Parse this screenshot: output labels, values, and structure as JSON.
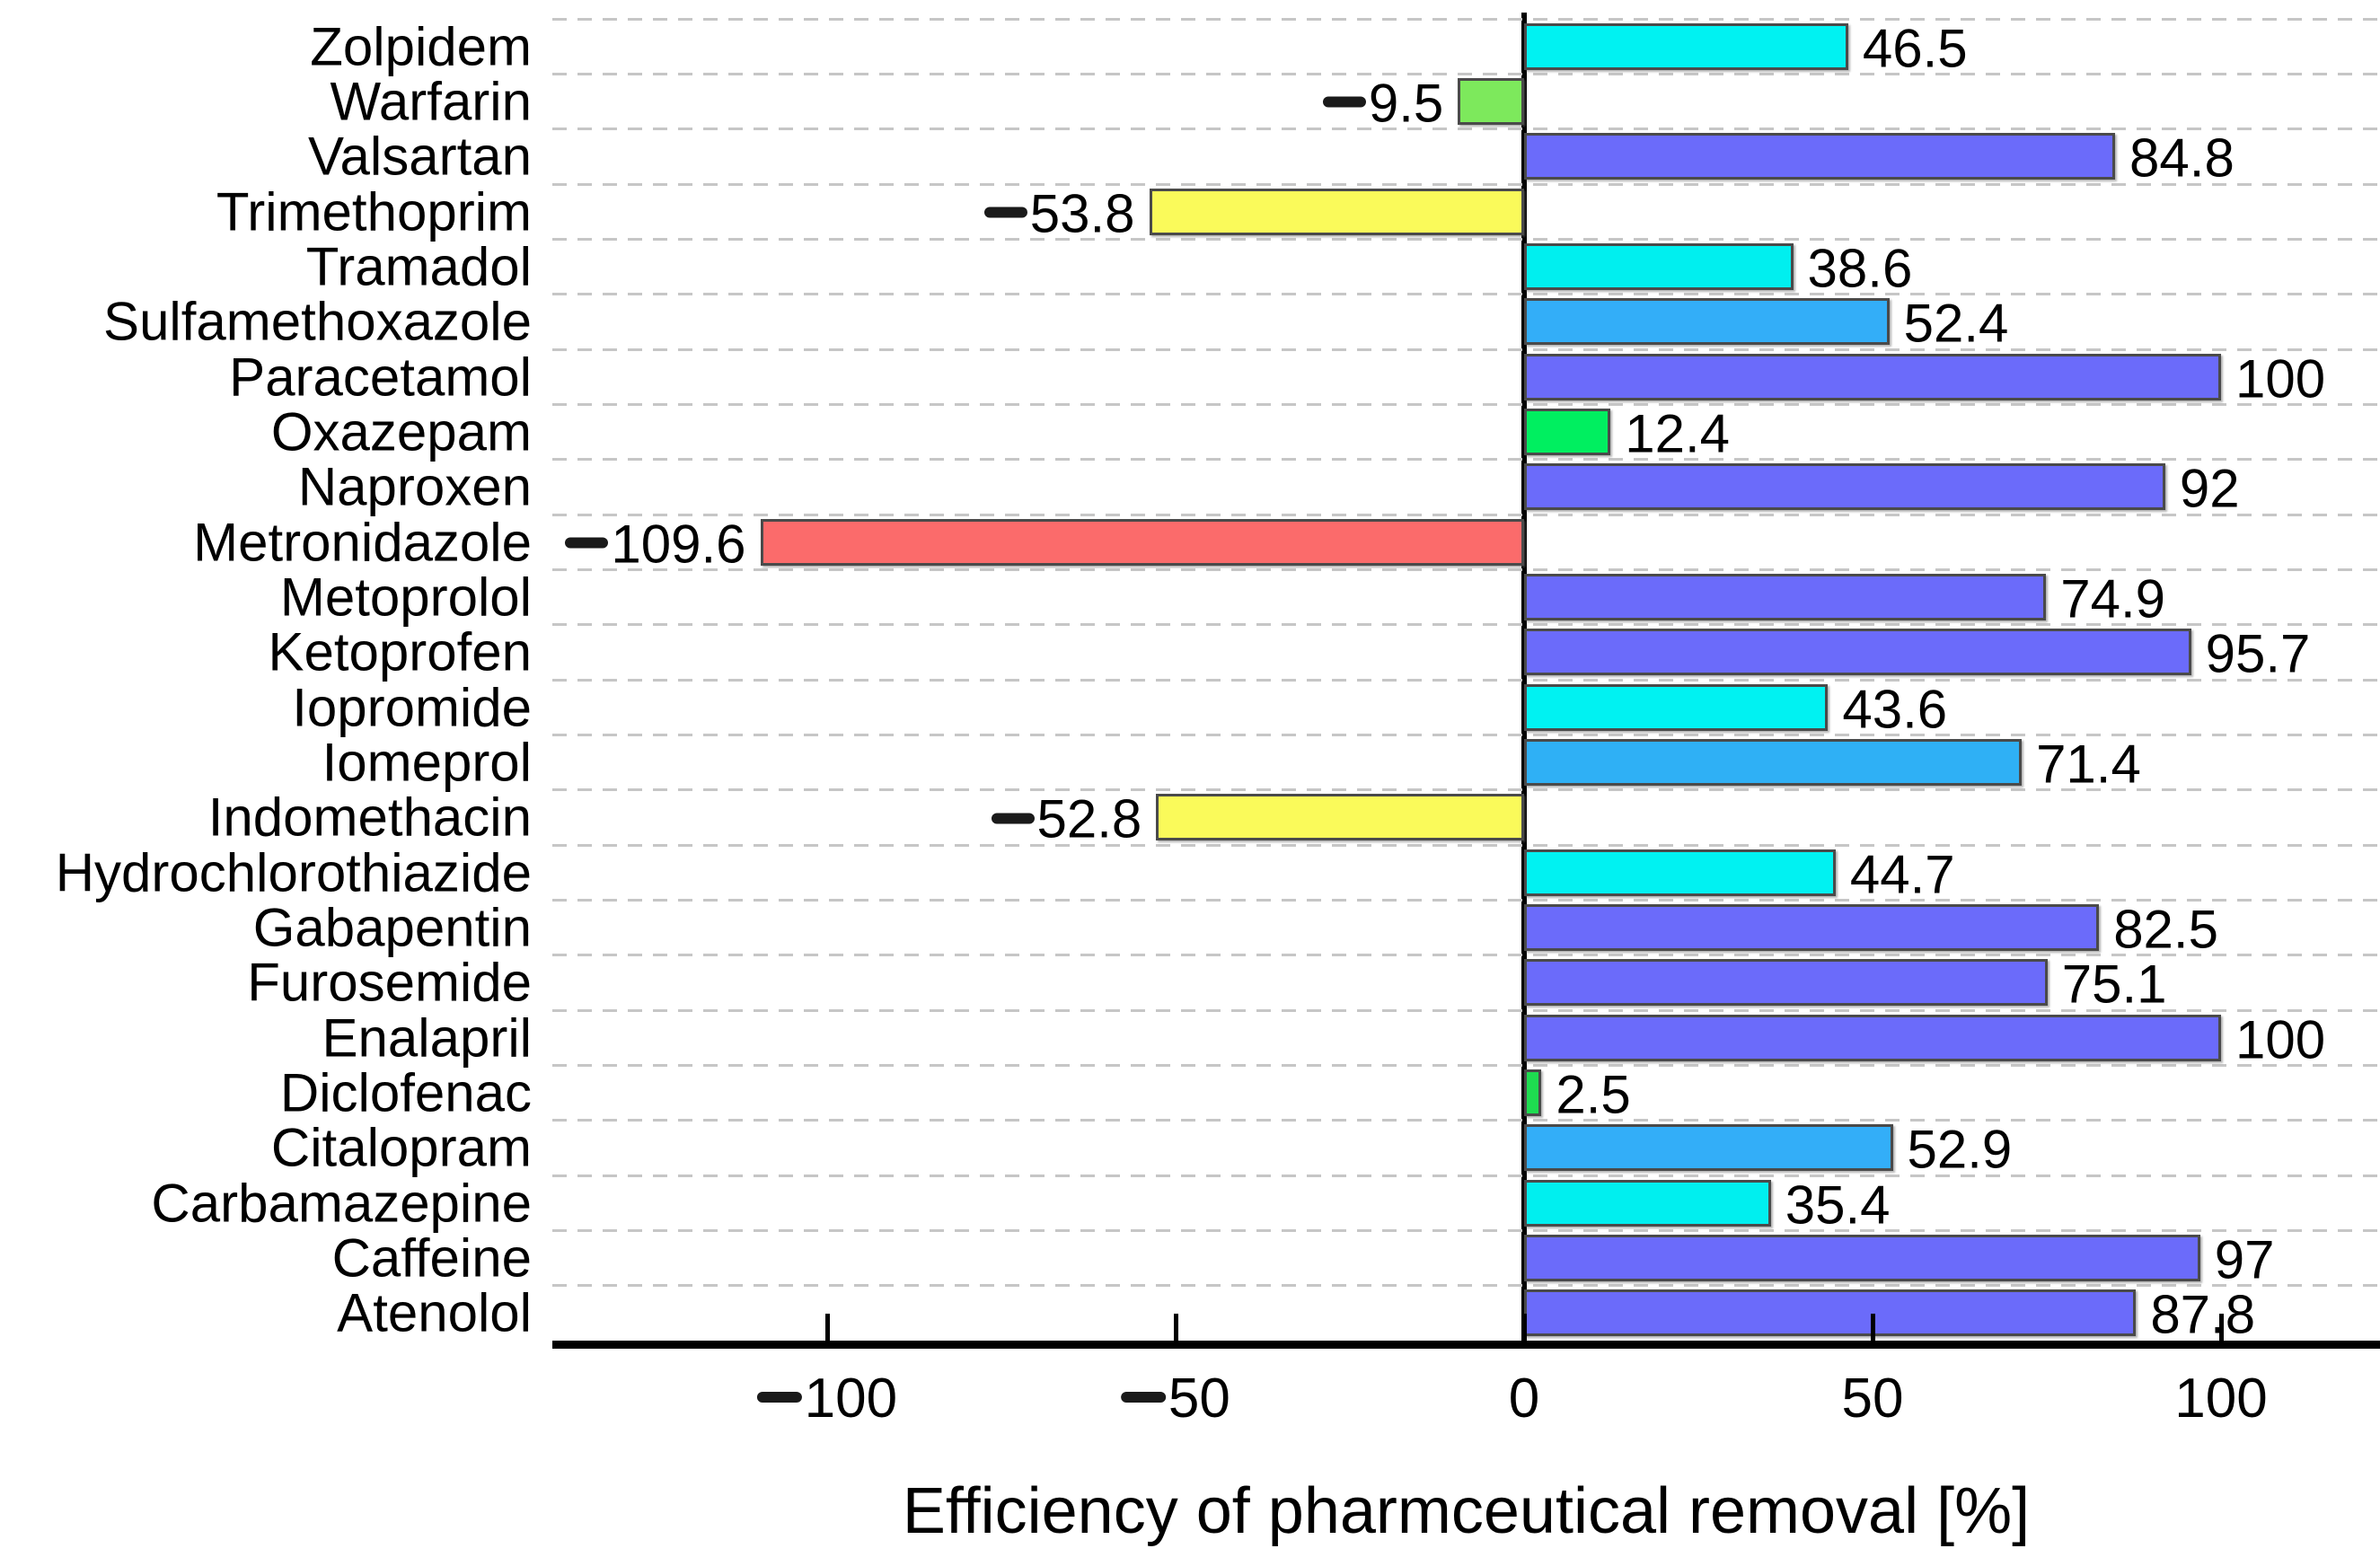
{
  "chart_data": {
    "type": "bar",
    "orientation": "horizontal",
    "title": "",
    "xlabel": "Efficiency of pharmceutical removal [%]",
    "ylabel": "",
    "xlim": [
      -139.5,
      122.8
    ],
    "xticks": [
      "-100",
      "-50",
      "0",
      "50",
      "100"
    ],
    "xtick_values": [
      -100,
      -50,
      0,
      50,
      100
    ],
    "grid": "dashed horizontal category separators, zero baseline solid",
    "legend": "none",
    "categories": [
      "Zolpidem",
      "Warfarin",
      "Valsartan",
      "Trimethoprim",
      "Tramadol",
      "Sulfamethoxazole",
      "Paracetamol",
      "Oxazepam",
      "Naproxen",
      "Metronidazole",
      "Metoprolol",
      "Ketoprofen",
      "Iopromide",
      "Iomeprol",
      "Indomethacin",
      "Hydrochlorothiazide",
      "Gabapentin",
      "Furosemide",
      "Enalapril",
      "Diclofenac",
      "Citalopram",
      "Carbamazepine",
      "Caffeine",
      "Atenolol"
    ],
    "values": [
      46.5,
      -9.5,
      84.8,
      -53.8,
      38.6,
      52.4,
      100,
      12.4,
      92,
      -109.6,
      74.9,
      95.7,
      43.6,
      71.4,
      -52.8,
      44.7,
      82.5,
      75.1,
      100,
      2.5,
      52.9,
      35.4,
      97,
      87.8
    ],
    "value_labels": [
      "46.5",
      "-9.5",
      "84.8",
      "-53.8",
      "38.6",
      "52.4",
      "100",
      "12.4",
      "92",
      "-109.6",
      "74.9",
      "95.7",
      "43.6",
      "71.4",
      "-52.8",
      "44.7",
      "82.5",
      "75.1",
      "100",
      "2.5",
      "52.9",
      "35.4",
      "97",
      "87.8"
    ],
    "bar_colors": [
      "#00F2F2",
      "#7DE95C",
      "#6B6BFA",
      "#FAFA5A",
      "#00EFEF",
      "#33AEF8",
      "#6B6BFA",
      "#00EF60",
      "#6B6BFA",
      "#FB6B6B",
      "#6B6BFA",
      "#6B6BFA",
      "#00F2F2",
      "#2FB0F5",
      "#FAFA5A",
      "#00F2F2",
      "#6B6BFA",
      "#6B6BFA",
      "#6B6BFA",
      "#1EDC50",
      "#33AEF8",
      "#00EFEF",
      "#6B6BFA",
      "#6B6BFA"
    ],
    "bar_border_color": "#4a4a4a",
    "gridline_color": "#c6c6c6",
    "axis_color": "#000000",
    "text_color": "#000000",
    "background_color": "#ffffff"
  }
}
